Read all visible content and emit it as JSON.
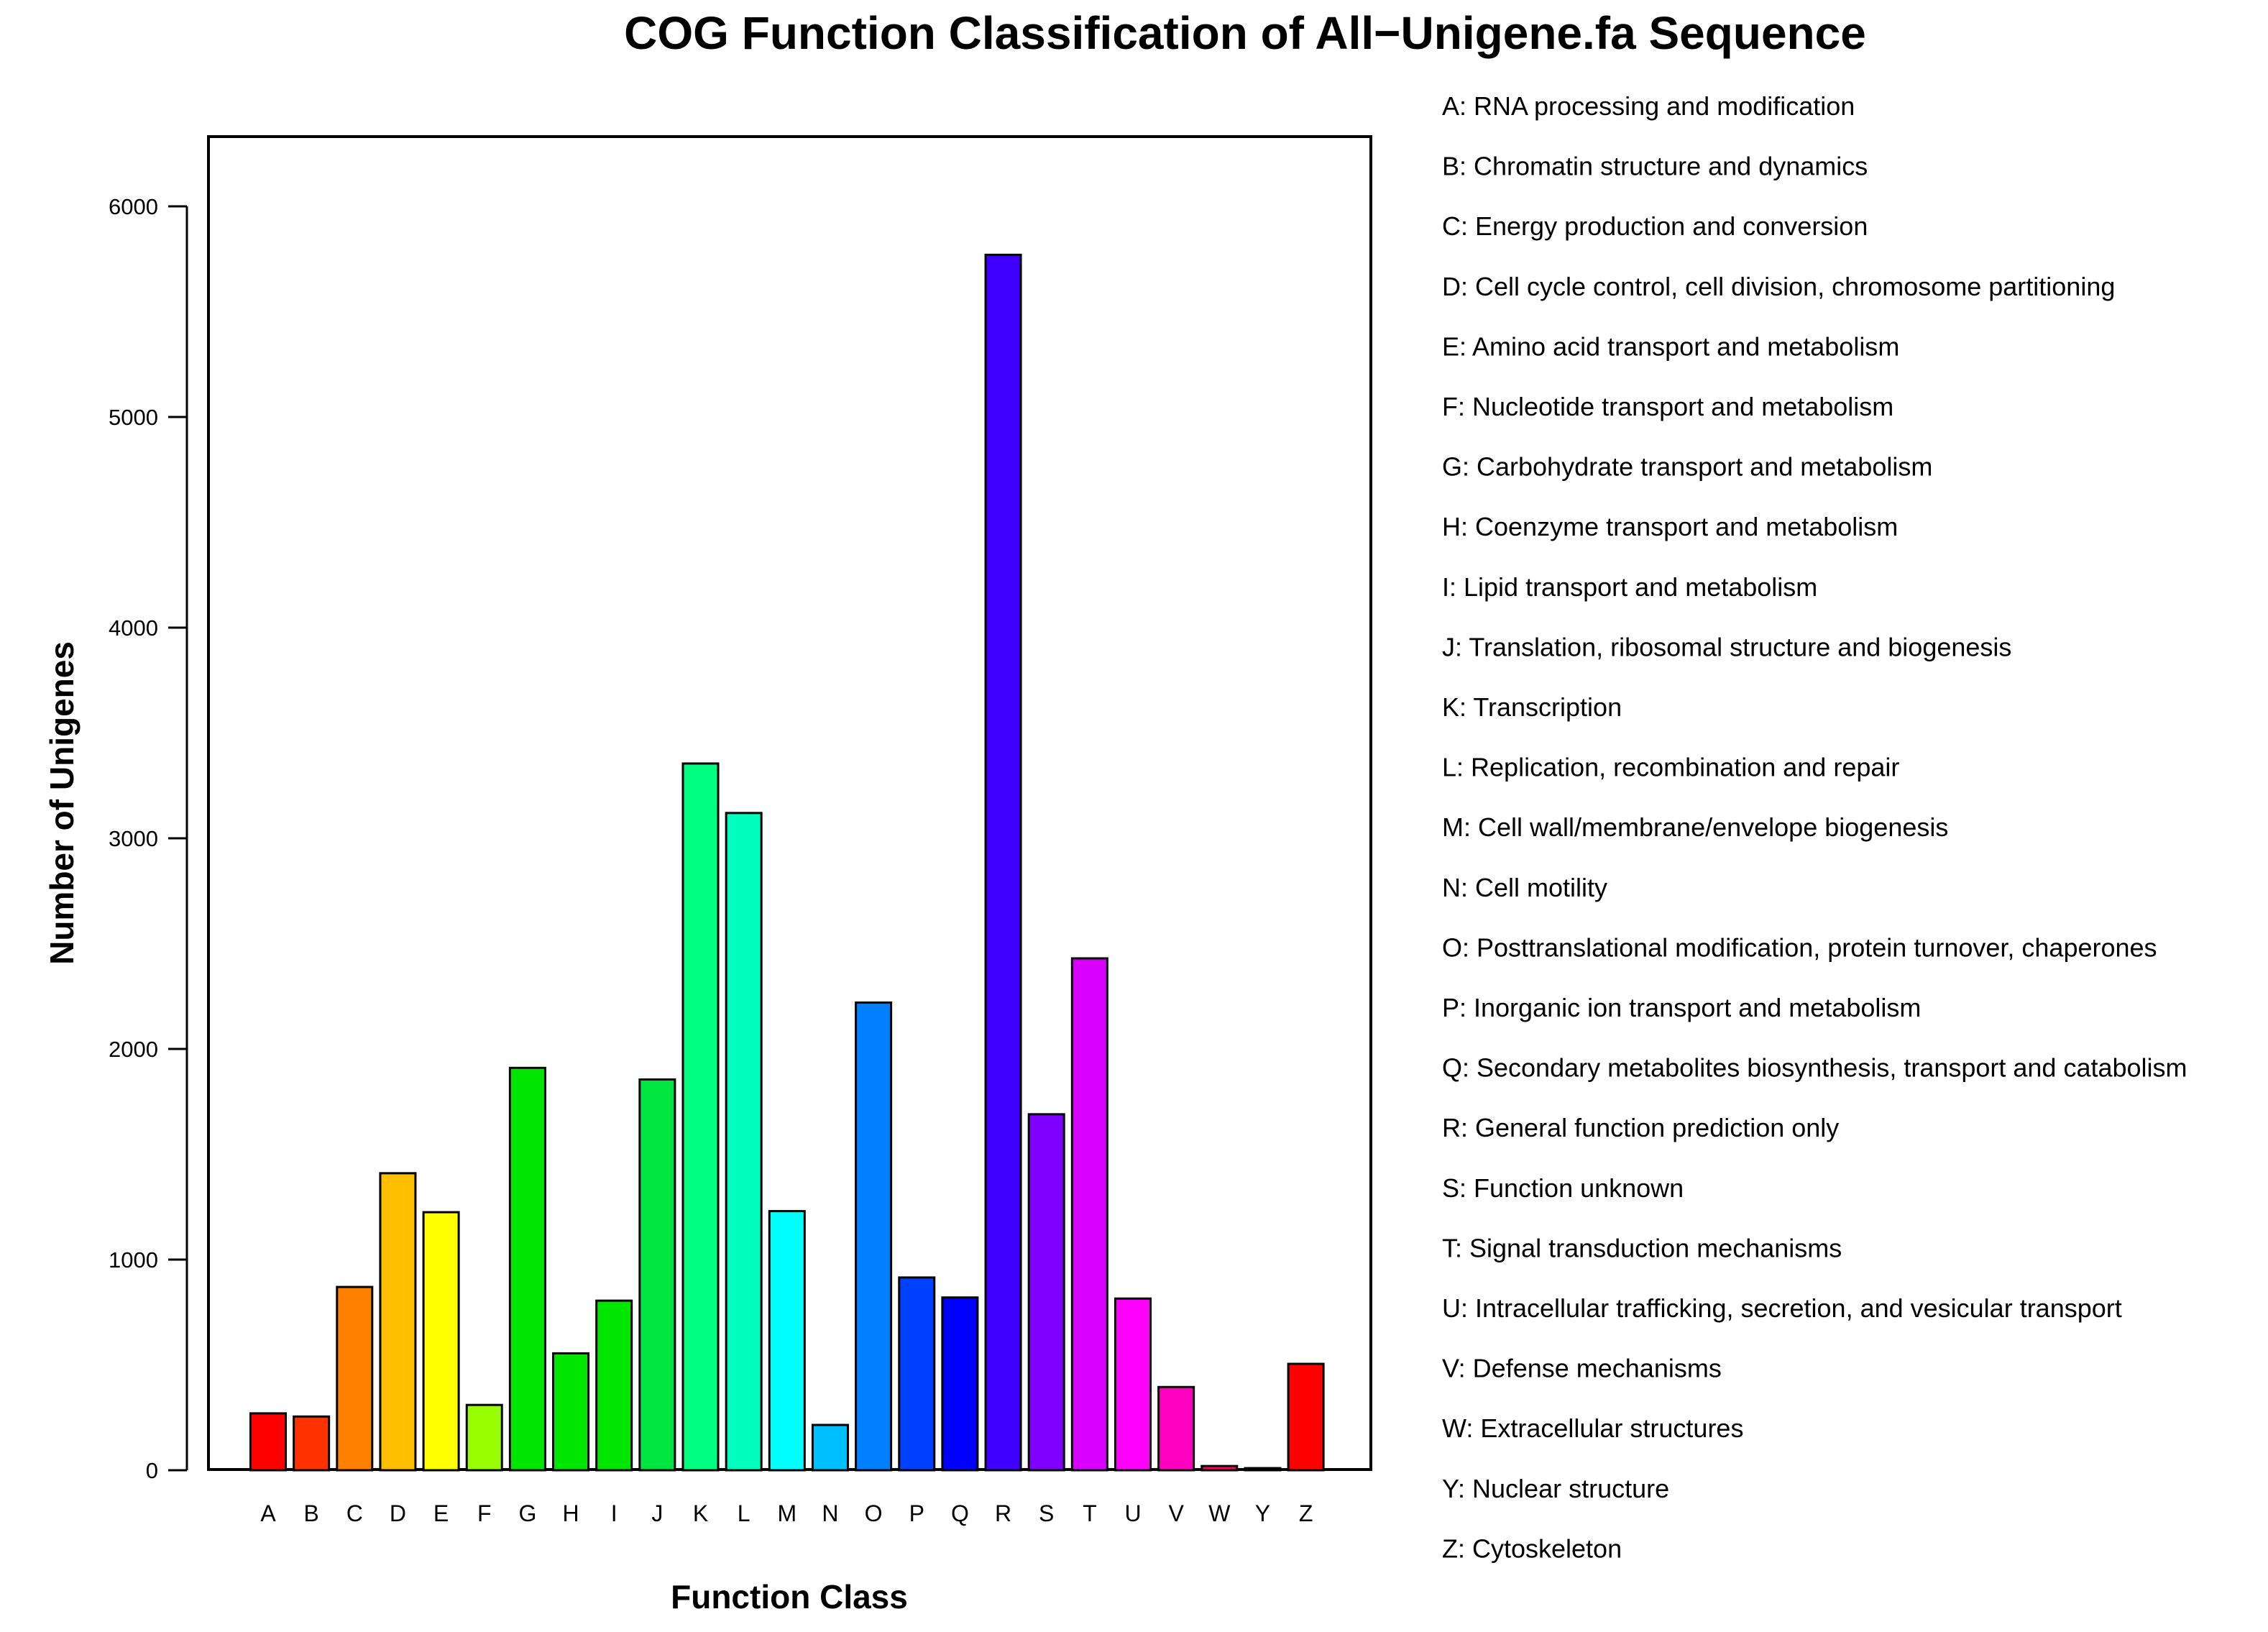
{
  "chart_data": {
    "type": "bar",
    "title": "COG Function Classification of All−Unigene.fa Sequence",
    "xlabel": "Function Class",
    "ylabel": "Number of Unigenes",
    "ylim": [
      0,
      6350
    ],
    "yticks": [
      0,
      1000,
      2000,
      3000,
      4000,
      5000,
      6000
    ],
    "grid": false,
    "legend_position": "right",
    "categories": [
      "A",
      "B",
      "C",
      "D",
      "E",
      "F",
      "G",
      "H",
      "I",
      "J",
      "K",
      "L",
      "M",
      "N",
      "O",
      "P",
      "Q",
      "R",
      "S",
      "T",
      "U",
      "V",
      "W",
      "Y",
      "Z"
    ],
    "values": [
      270,
      255,
      870,
      1410,
      1225,
      310,
      1910,
      555,
      805,
      1855,
      3355,
      3120,
      1230,
      215,
      2220,
      915,
      820,
      5770,
      1690,
      2430,
      815,
      395,
      20,
      10,
      505
    ],
    "colors": [
      "#FF0000",
      "#FF3300",
      "#FF8000",
      "#FFBF00",
      "#FFFF00",
      "#99FF00",
      "#00E600",
      "#00E600",
      "#00E600",
      "#00E640",
      "#00FF80",
      "#00FFBF",
      "#00FFFF",
      "#00BFFF",
      "#0080FF",
      "#0040FF",
      "#0000FF",
      "#4000FF",
      "#8000FF",
      "#D900FF",
      "#FF00FF",
      "#FF00BF",
      "#FF0066",
      "#FF0040",
      "#FF0000"
    ],
    "legend": [
      "A: RNA processing and modification",
      "B: Chromatin structure and dynamics",
      "C: Energy production and conversion",
      "D: Cell cycle control, cell division, chromosome partitioning",
      "E: Amino acid transport and metabolism",
      "F: Nucleotide transport and metabolism",
      "G: Carbohydrate transport and metabolism",
      "H: Coenzyme transport and metabolism",
      "I: Lipid transport and metabolism",
      "J: Translation, ribosomal structure and biogenesis",
      "K: Transcription",
      "L: Replication, recombination and repair",
      "M: Cell wall/membrane/envelope biogenesis",
      "N: Cell motility",
      "O: Posttranslational modification, protein turnover, chaperones",
      "P: Inorganic ion transport and metabolism",
      "Q: Secondary metabolites biosynthesis, transport and catabolism",
      "R: General function prediction only",
      "S: Function unknown",
      "T: Signal transduction mechanisms",
      "U: Intracellular trafficking, secretion, and vesicular transport",
      "V: Defense mechanisms",
      "W: Extracellular structures",
      "Y: Nuclear structure",
      "Z: Cytoskeleton"
    ]
  }
}
